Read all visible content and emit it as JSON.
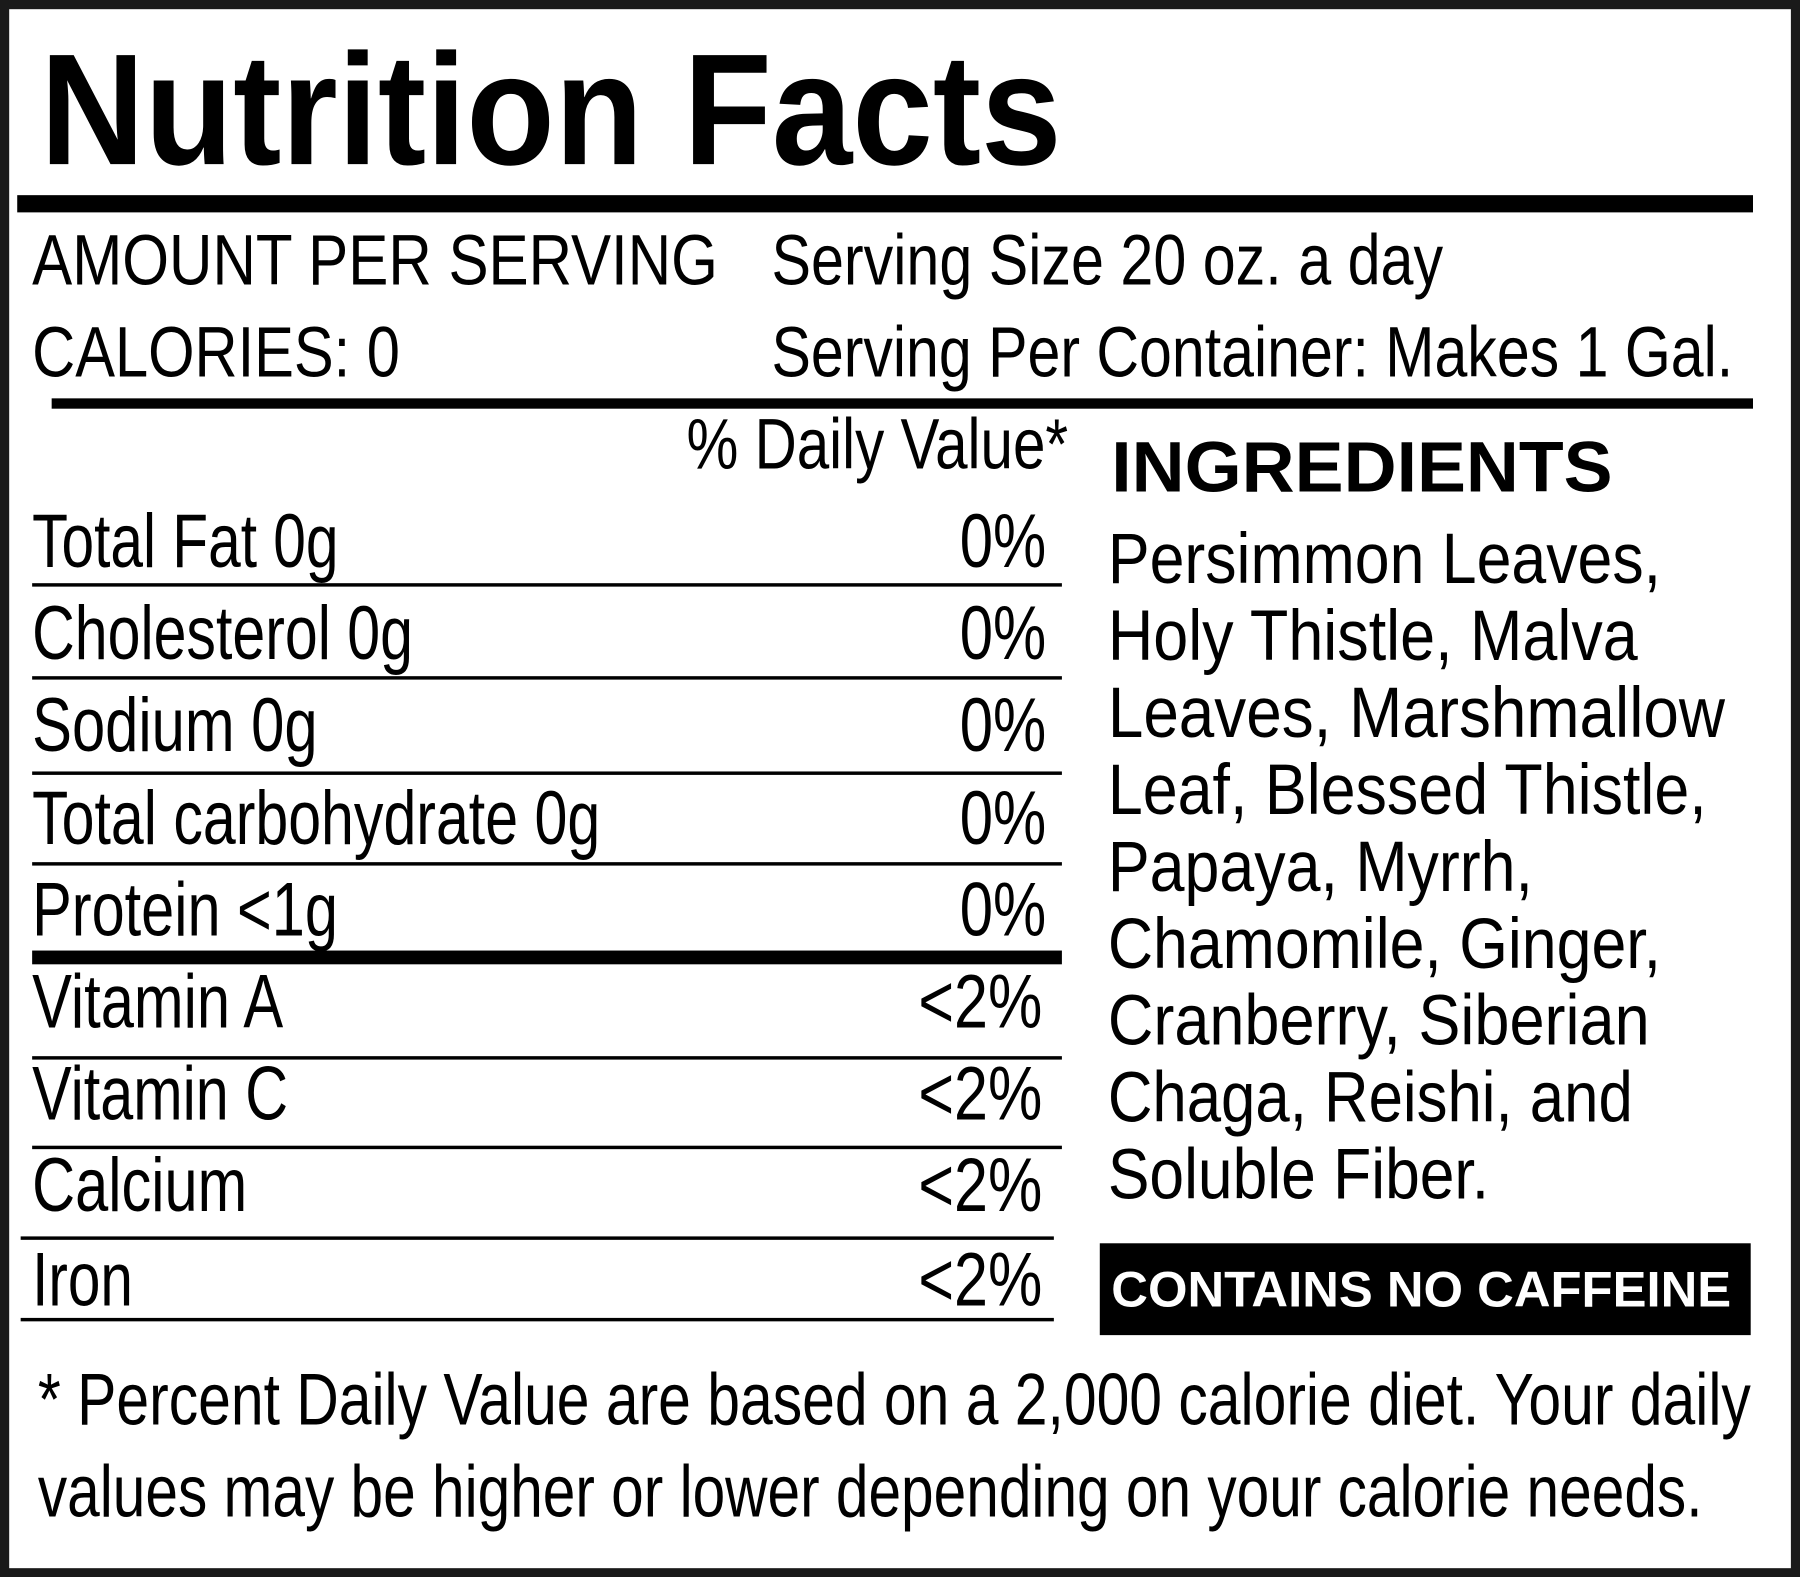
{
  "title": "Nutrition Facts",
  "serving": {
    "amount_label": "AMOUNT PER SERVING",
    "calories": "CALORIES: 0",
    "serving_size": "Serving Size 20 oz. a day",
    "servings_per_container": "Serving Per Container: Makes 1 Gal."
  },
  "daily_value_header": "% Daily Value*",
  "nutrients": [
    {
      "name": "Total Fat 0g",
      "percent": "0%"
    },
    {
      "name": "Cholesterol 0g",
      "percent": "0%"
    },
    {
      "name": "Sodium 0g",
      "percent": "0%"
    },
    {
      "name": "Total carbohydrate 0g",
      "percent": "0%"
    },
    {
      "name": "Protein <1g",
      "percent": "0%"
    },
    {
      "name": "Vitamin A",
      "percent": "<2%"
    },
    {
      "name": "Vitamin C",
      "percent": "<2%"
    },
    {
      "name": "Calcium",
      "percent": "<2%"
    },
    {
      "name": "Iron",
      "percent": "<2%"
    }
  ],
  "ingredients": {
    "heading": "INGREDIENTS",
    "lines": [
      "Persimmon Leaves,",
      "Holy Thistle, Malva",
      "Leaves, Marshmallow",
      "Leaf, Blessed Thistle,",
      "Papaya, Myrrh,",
      "Chamomile, Ginger,",
      "Cranberry, Siberian",
      "Chaga, Reishi, and",
      "Soluble Fiber."
    ],
    "caffeine_badge": "CONTAINS NO CAFFEINE"
  },
  "footnote": [
    "* Percent Daily Value are based on a 2,000 calorie diet. Your daily",
    "values may be higher or lower depending on your calorie needs."
  ]
}
